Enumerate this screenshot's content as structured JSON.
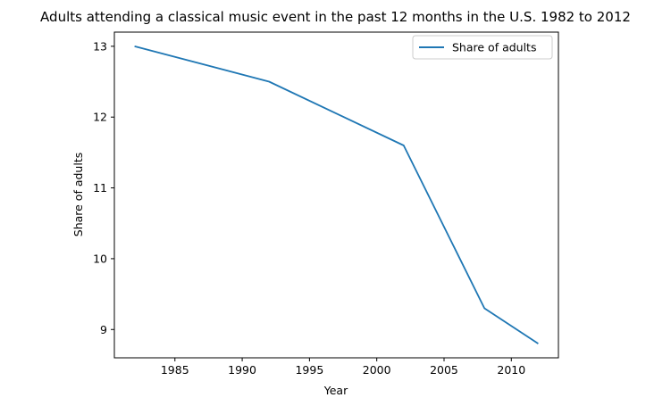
{
  "chart_data": {
    "type": "line",
    "title": "Adults attending a classical music event in the past 12 months in the U.S. 1982 to 2012",
    "xlabel": "Year",
    "ylabel": "Share of adults",
    "xlim": [
      1980.5,
      2013.5
    ],
    "ylim": [
      8.6,
      13.2
    ],
    "xticks": [
      1985,
      1990,
      1995,
      2000,
      2005,
      2010
    ],
    "yticks": [
      9,
      10,
      11,
      12,
      13
    ],
    "grid": false,
    "legend_position": "upper right",
    "series": [
      {
        "name": "Share of adults",
        "color": "#1f77b4",
        "x": [
          1982,
          1992,
          2002,
          2008,
          2012
        ],
        "y": [
          13.0,
          12.5,
          11.6,
          9.3,
          8.8
        ]
      }
    ]
  }
}
